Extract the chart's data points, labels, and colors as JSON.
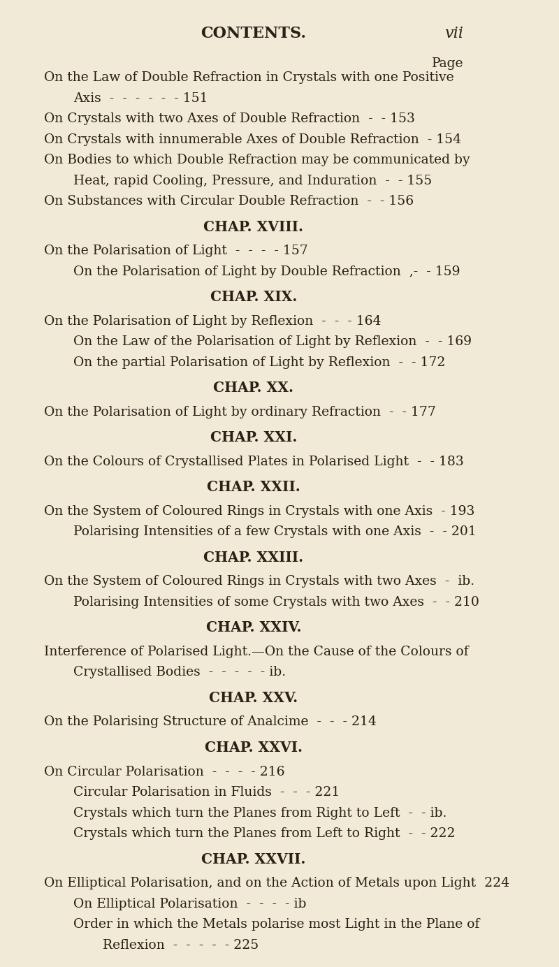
{
  "bg_color": "#f0ead6",
  "text_color": "#2a2015",
  "header_left": "CONTENTS.",
  "header_right": "vii",
  "page_label": "Page",
  "font_size_body": 13.5,
  "font_size_chapter": 14.5,
  "font_size_header": 16,
  "lines": [
    {
      "text": "Page",
      "indent": 0,
      "align": "right",
      "style": "normal",
      "page": ""
    },
    {
      "text": "On the Law of Double Refraction in Crystals with one Positive",
      "indent": 0,
      "align": "left",
      "style": "normal",
      "page": ""
    },
    {
      "text": "Axis  -  -  -  -  -  - 151",
      "indent": 1,
      "align": "left",
      "style": "normal",
      "page": "151"
    },
    {
      "text": "On Crystals with two Axes of Double Refraction  -  - 153",
      "indent": 0,
      "align": "left",
      "style": "normal",
      "page": "153"
    },
    {
      "text": "On Crystals with innumerable Axes of Double Refraction  - 154",
      "indent": 0,
      "align": "left",
      "style": "normal",
      "page": "154"
    },
    {
      "text": "On Bodies to which Double Refraction may be communicated by",
      "indent": 0,
      "align": "left",
      "style": "normal",
      "page": ""
    },
    {
      "text": "Heat, rapid Cooling, Pressure, and Induration  -  - 155",
      "indent": 1,
      "align": "left",
      "style": "normal",
      "page": "155"
    },
    {
      "text": "On Substances with Circular Double Refraction  -  - 156",
      "indent": 0,
      "align": "left",
      "style": "normal",
      "page": "156"
    },
    {
      "text": "CHAP. XVIII.",
      "indent": 0,
      "align": "center",
      "style": "chapter",
      "page": ""
    },
    {
      "text": "On the Polarisation of Light  -  -  -  - 157",
      "indent": 0,
      "align": "left",
      "style": "normal",
      "page": "157"
    },
    {
      "text": "On the Polarisation of Light by Double Refraction  ,-  - 159",
      "indent": 1,
      "align": "left",
      "style": "normal",
      "page": "159"
    },
    {
      "text": "CHAP. XIX.",
      "indent": 0,
      "align": "center",
      "style": "chapter",
      "page": ""
    },
    {
      "text": "On the Polarisation of Light by Reflexion  -  -  - 164",
      "indent": 0,
      "align": "left",
      "style": "normal",
      "page": "164"
    },
    {
      "text": "On the Law of the Polarisation of Light by Reflexion  -  - 169",
      "indent": 1,
      "align": "left",
      "style": "normal",
      "page": "169"
    },
    {
      "text": "On the partial Polarisation of Light by Reflexion  -  - 172",
      "indent": 1,
      "align": "left",
      "style": "normal",
      "page": "172"
    },
    {
      "text": "CHAP. XX.",
      "indent": 0,
      "align": "center",
      "style": "chapter",
      "page": ""
    },
    {
      "text": "On the Polarisation of Light by ordinary Refraction  -  - 177",
      "indent": 0,
      "align": "left",
      "style": "normal",
      "page": "177"
    },
    {
      "text": "CHAP. XXI.",
      "indent": 0,
      "align": "center",
      "style": "chapter",
      "page": ""
    },
    {
      "text": "On the Colours of Crystallised Plates in Polarised Light  -  - 183",
      "indent": 0,
      "align": "left",
      "style": "normal",
      "page": "183"
    },
    {
      "text": "CHAP. XXII.",
      "indent": 0,
      "align": "center",
      "style": "chapter",
      "page": ""
    },
    {
      "text": "On the System of Coloured Rings in Crystals with one Axis  - 193",
      "indent": 0,
      "align": "left",
      "style": "normal",
      "page": "193"
    },
    {
      "text": "Polarising Intensities of a few Crystals with one Axis  -  - 201",
      "indent": 1,
      "align": "left",
      "style": "normal",
      "page": "201"
    },
    {
      "text": "CHAP. XXIII.",
      "indent": 0,
      "align": "center",
      "style": "chapter",
      "page": ""
    },
    {
      "text": "On the System of Coloured Rings in Crystals with two Axes  -  ib.",
      "indent": 0,
      "align": "left",
      "style": "normal",
      "page": "ib."
    },
    {
      "text": "Polarising Intensities of some Crystals with two Axes  -  - 210",
      "indent": 1,
      "align": "left",
      "style": "normal",
      "page": "210"
    },
    {
      "text": "CHAP. XXIV.",
      "indent": 0,
      "align": "center",
      "style": "chapter",
      "page": ""
    },
    {
      "text": "Interference of Polarised Light.—On the Cause of the Colours of",
      "indent": 0,
      "align": "left",
      "style": "normal",
      "page": ""
    },
    {
      "text": "Crystallised Bodies  -  -  -  -  - ib.",
      "indent": 1,
      "align": "left",
      "style": "normal",
      "page": "ib."
    },
    {
      "text": "CHAP. XXV.",
      "indent": 0,
      "align": "center",
      "style": "chapter",
      "page": ""
    },
    {
      "text": "On the Polarising Structure of Analcime  -  -  - 214",
      "indent": 0,
      "align": "left",
      "style": "normal",
      "page": "214"
    },
    {
      "text": "CHAP. XXVI.",
      "indent": 0,
      "align": "center",
      "style": "chapter",
      "page": ""
    },
    {
      "text": "On Circular Polarisation  -  -  -  - 216",
      "indent": 0,
      "align": "left",
      "style": "normal",
      "page": "216"
    },
    {
      "text": "Circular Polarisation in Fluids  -  -  - 221",
      "indent": 1,
      "align": "left",
      "style": "normal",
      "page": "221"
    },
    {
      "text": "Crystals which turn the Planes from Right to Left  -  - ib.",
      "indent": 1,
      "align": "left",
      "style": "normal",
      "page": "ib."
    },
    {
      "text": "Crystals which turn the Planes from Left to Right  -  - 222",
      "indent": 1,
      "align": "left",
      "style": "normal",
      "page": "222"
    },
    {
      "text": "CHAP. XXVII.",
      "indent": 0,
      "align": "center",
      "style": "chapter",
      "page": ""
    },
    {
      "text": "On Elliptical Polarisation, and on the Action of Metals upon Light  224",
      "indent": 0,
      "align": "left",
      "style": "normal",
      "page": "224"
    },
    {
      "text": "On Elliptical Polarisation  -  -  -  - ib",
      "indent": 1,
      "align": "left",
      "style": "normal",
      "page": "ib"
    },
    {
      "text": "Order in which the Metals polarise most Light in the Plane of",
      "indent": 1,
      "align": "left",
      "style": "normal",
      "page": ""
    },
    {
      "text": "Reflexion  -  -  -  -  - 225",
      "indent": 2,
      "align": "left",
      "style": "normal",
      "page": "225"
    }
  ]
}
